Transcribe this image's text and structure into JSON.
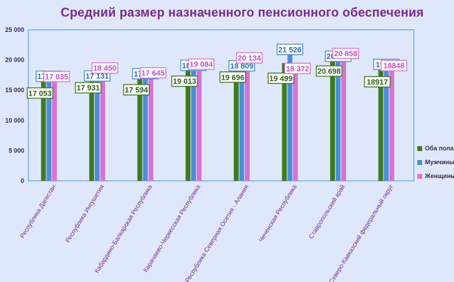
{
  "chart_data": {
    "type": "bar",
    "title": "Средний размер назначенного пенсионного обеспечения",
    "categories": [
      "Республика Дагестан",
      "Республика Ингушетия",
      "Кабардино-Балкарская Республика",
      "Карачаево-Черкесская Республика",
      "Республика Северная Осетия - Алания",
      "Чеченская Республика",
      "Ставропольский край",
      "Северо-Кавказский федеральный округ"
    ],
    "series": [
      {
        "name": "Оба пола",
        "color": "#3f7a22",
        "values": [
          17053,
          17931,
          17594,
          19013,
          19696,
          19499,
          20698,
          18917
        ],
        "labels": [
          "17 053",
          "17 931",
          "17 594",
          "19 013",
          "19 696",
          "19 499",
          "20 698",
          "18917"
        ]
      },
      {
        "name": "Мужчины",
        "color": "#4a8fd6",
        "values": [
          17081,
          17131,
          17498,
          18891,
          18809,
          21526,
          20397,
          19039
        ],
        "labels": [
          "17 081",
          "17 131",
          "17 498",
          "18 891",
          "18 809",
          "21 526",
          "20 397",
          "19039"
        ]
      },
      {
        "name": "Женщины",
        "color": "#d872d6",
        "values": [
          17035,
          18450,
          17645,
          19084,
          20134,
          18372,
          20858,
          18848
        ],
        "labels": [
          "17 035",
          "18 450",
          "17 645",
          "19 084",
          "20 134",
          "18 372",
          "20 858",
          "18848"
        ]
      }
    ],
    "ylim": [
      0,
      25000
    ],
    "yticks": [
      0,
      5000,
      10000,
      15000,
      20000,
      25000
    ],
    "ytick_labels": [
      "0",
      "5 000",
      "10 000",
      "15 000",
      "20 000",
      "25 000"
    ],
    "grid": false,
    "legend_position": "right"
  }
}
